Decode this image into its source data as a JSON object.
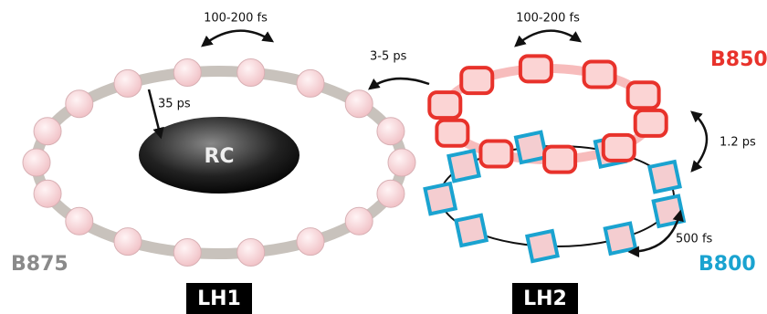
{
  "lh1": {
    "title": "LH1",
    "ring": "B875",
    "center": "RC",
    "transfer_to_rc": "35 ps",
    "ring_hopping": "100-200 fs"
  },
  "lh2": {
    "title": "LH2",
    "outer_ring": "B850",
    "inner_ring": "B800",
    "ring_hopping": "100-200 fs",
    "b800_to_b850": "1.2 ps",
    "b800_hopping": "500 fs"
  },
  "lh2_to_lh1": "3-5 ps"
}
